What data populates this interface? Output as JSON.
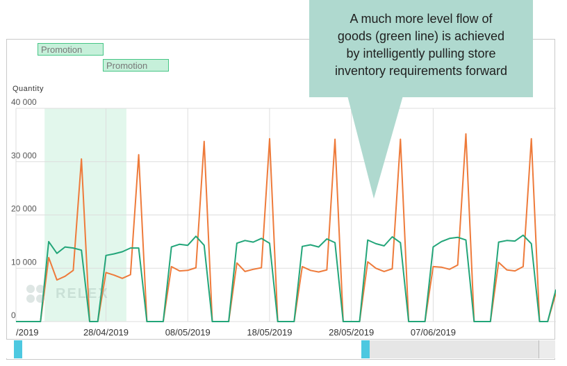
{
  "callout": {
    "lines": [
      "A much more level flow of",
      "goods (green line) is achieved",
      "by intelligently pulling store",
      "inventory requirements forward"
    ]
  },
  "promotions": [
    "Promotion",
    "Promotion"
  ],
  "watermark": "RELEX",
  "colors": {
    "green_series": "#22a579",
    "orange_series": "#ee7a3a",
    "promo_band": "#e2f7ec",
    "callout_bg": "#afd9cf",
    "scroll_handle": "#4dc8e0"
  },
  "chart_data": {
    "type": "line",
    "ylabel": "Quantity",
    "ylim": [
      0,
      40000
    ],
    "yticks": [
      "0",
      "10 000",
      "20 000",
      "30 000",
      "40 000"
    ],
    "xtick_labels": [
      "/2019",
      "28/04/2019",
      "08/05/2019",
      "18/05/2019",
      "28/05/2019",
      "07/06/2019"
    ],
    "xtick_index": [
      0,
      11,
      21,
      31,
      41,
      51
    ],
    "promotion_range_index": [
      [
        3.5,
        13.5
      ]
    ],
    "grid": true,
    "series": [
      {
        "color": "#ee7a3a",
        "values": [
          0,
          0,
          0,
          0,
          12000,
          7800,
          8500,
          9600,
          30500,
          0,
          0,
          9200,
          8700,
          8100,
          8800,
          31300,
          0,
          0,
          0,
          10300,
          9500,
          9600,
          10100,
          33800,
          0,
          0,
          0,
          11000,
          9400,
          9800,
          10100,
          34300,
          0,
          0,
          0,
          10300,
          9600,
          9300,
          9700,
          34200,
          0,
          0,
          0,
          11200,
          10000,
          9400,
          9900,
          34200,
          0,
          0,
          0,
          10300,
          10200,
          9800,
          10600,
          35200,
          0,
          0,
          0,
          11100,
          9700,
          9500,
          10300,
          34300,
          0,
          0,
          5300
        ]
      },
      {
        "color": "#22a579",
        "values": [
          0,
          0,
          0,
          0,
          15000,
          12800,
          14000,
          13800,
          13400,
          0,
          0,
          12400,
          12700,
          13100,
          13800,
          13800,
          0,
          0,
          0,
          14000,
          14500,
          14300,
          16000,
          14300,
          0,
          0,
          0,
          14700,
          15200,
          14900,
          15600,
          14700,
          0,
          0,
          0,
          14100,
          14400,
          14000,
          15500,
          14800,
          0,
          0,
          0,
          15300,
          14600,
          14200,
          15900,
          14800,
          0,
          0,
          0,
          14000,
          15000,
          15600,
          15800,
          15300,
          0,
          0,
          0,
          14900,
          15200,
          15100,
          16200,
          14600,
          0,
          0,
          6000
        ]
      }
    ]
  }
}
